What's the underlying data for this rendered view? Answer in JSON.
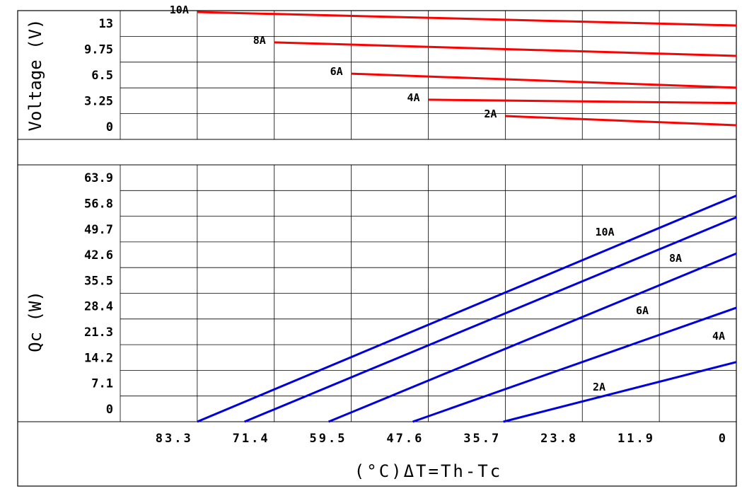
{
  "chart_data": [
    {
      "type": "line",
      "ylabel": "Voltage (V)",
      "yticks": [
        "13",
        "9.75",
        "6.5",
        "3.25",
        "0"
      ],
      "ylim": [
        0,
        13
      ],
      "xlim": [
        95.2,
        0
      ],
      "series": [
        {
          "name": "10A",
          "x": [
            83.3,
            0
          ],
          "y": [
            13,
            11.6
          ],
          "color": "#ff0000"
        },
        {
          "name": "8A",
          "x": [
            71.4,
            0
          ],
          "y": [
            9.85,
            8.45
          ],
          "color": "#ff0000"
        },
        {
          "name": "6A",
          "x": [
            59.5,
            0
          ],
          "y": [
            6.6,
            5.15
          ],
          "color": "#ff0000"
        },
        {
          "name": "4A",
          "x": [
            47.6,
            0
          ],
          "y": [
            3.9,
            3.55
          ],
          "color": "#ff0000"
        },
        {
          "name": "2A",
          "x": [
            35.7,
            0
          ],
          "y": [
            2.2,
            1.25
          ],
          "color": "#ff0000"
        }
      ]
    },
    {
      "type": "line",
      "ylabel": "Qc  (W)",
      "xlabel": "(°C)ΔT=Th-Tc",
      "yticks": [
        "63.9",
        "56.8",
        "49.7",
        "42.6",
        "35.5",
        "28.4",
        "21.3",
        "14.2",
        "7.1",
        "0"
      ],
      "xticks": [
        "83.3",
        "71.4",
        "59.5",
        "47.6",
        "35.7",
        "23.8",
        "11.9",
        "0"
      ],
      "ylim": [
        0,
        71
      ],
      "xlim": [
        95.2,
        0
      ],
      "series": [
        {
          "name": "10A",
          "x": [
            83.3,
            0
          ],
          "y": [
            0,
            62.5
          ],
          "color": "#0000dd"
        },
        {
          "name": "8A",
          "x": [
            76.0,
            0
          ],
          "y": [
            0,
            56.5
          ],
          "color": "#0000dd"
        },
        {
          "name": "6A",
          "x": [
            63.0,
            0
          ],
          "y": [
            0,
            46.5
          ],
          "color": "#0000dd"
        },
        {
          "name": "4A",
          "x": [
            50.0,
            0
          ],
          "y": [
            0,
            31.5
          ],
          "color": "#0000dd"
        },
        {
          "name": "2A",
          "x": [
            36.0,
            0
          ],
          "y": [
            0,
            16.5
          ],
          "color": "#0000dd"
        }
      ]
    }
  ]
}
